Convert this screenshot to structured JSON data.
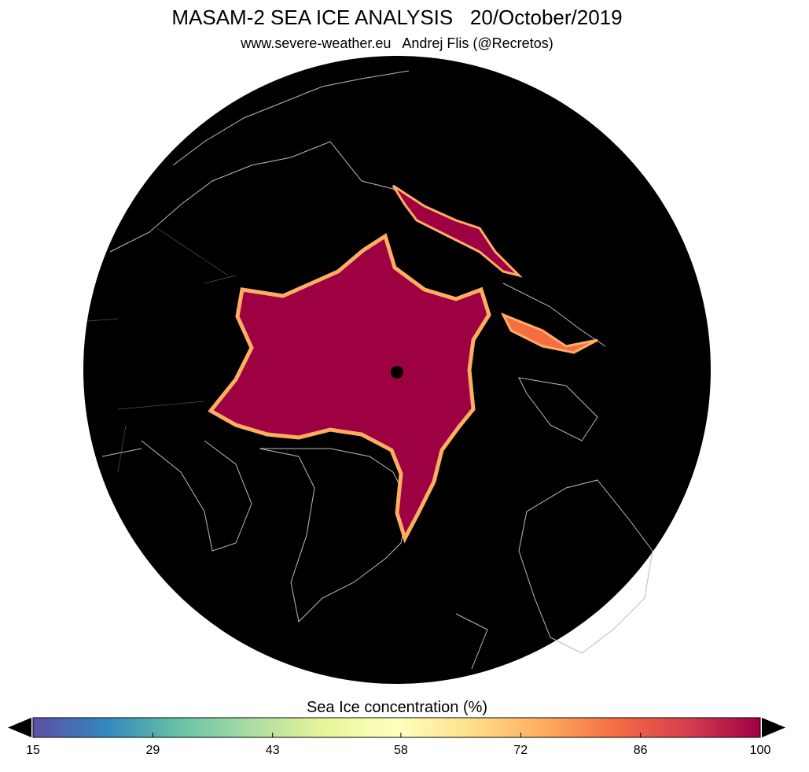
{
  "header": {
    "title": "MASAM-2 SEA ICE ANALYSIS   20/October/2019",
    "subtitle": "www.severe-weather.eu   Andrej Flis (@Recretos)"
  },
  "colorbar": {
    "label": "Sea Ice concentration (%)",
    "range": [
      15,
      100
    ],
    "ticks": [
      15,
      29,
      43,
      58,
      72,
      86,
      100
    ],
    "colors": [
      "#5e4fa2",
      "#3288bd",
      "#66c2a5",
      "#abdda4",
      "#e6f598",
      "#ffffbf",
      "#fee08b",
      "#fdae61",
      "#f46d43",
      "#d53e4f",
      "#9e0142"
    ]
  }
}
